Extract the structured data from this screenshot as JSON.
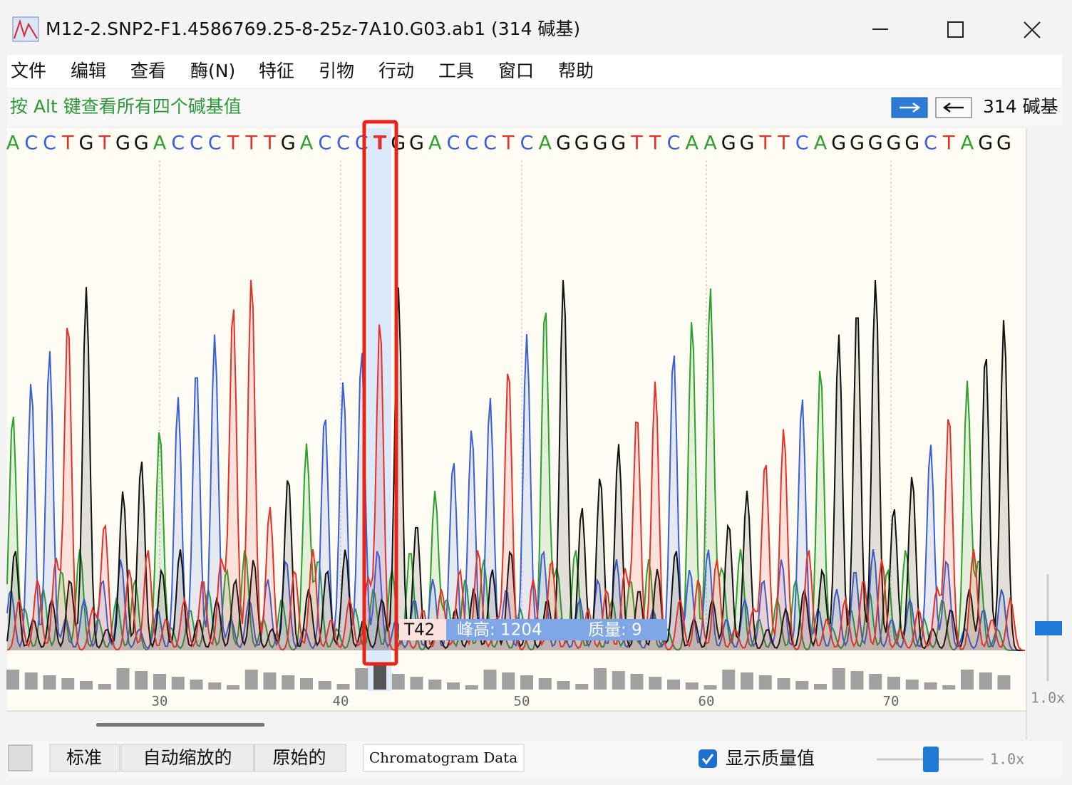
{
  "window": {
    "title": "M12-2.SNP2-F1.4586769.25-8-25z-7A10.G03.ab1  (314 碱基)"
  },
  "menu": [
    "文件",
    "编辑",
    "查看",
    "酶(N)",
    "特征",
    "引物",
    "行动",
    "工具",
    "窗口",
    "帮助"
  ],
  "hint": "按 Alt 键查看所有四个碱基值",
  "base_count": "314 碱基",
  "sequence": [
    "A",
    "C",
    "C",
    "T",
    "G",
    "T",
    "G",
    "G",
    "A",
    "C",
    "C",
    "C",
    "T",
    "T",
    "T",
    "G",
    "A",
    "C",
    "C",
    "C",
    "T",
    "G",
    "G",
    "A",
    "C",
    "C",
    "C",
    "T",
    "C",
    "A",
    "G",
    "G",
    "G",
    "G",
    "T",
    "T",
    "C",
    "A",
    "A",
    "G",
    "G",
    "T",
    "T",
    "C",
    "A",
    "G",
    "G",
    "G",
    "G",
    "G",
    "C",
    "T",
    "A",
    "G",
    "G"
  ],
  "ruler": [
    "30",
    "40",
    "50",
    "60",
    "70"
  ],
  "tooltip": {
    "base": "T42",
    "peak_height": "峰高: 1204",
    "quality": "质量: 9"
  },
  "tabs": [
    "标准",
    "自动缩放的",
    "原始的",
    "Chromatogram Data"
  ],
  "show_quality": "显示质量值",
  "zoom": [
    "1.0x",
    "1.0x"
  ]
}
